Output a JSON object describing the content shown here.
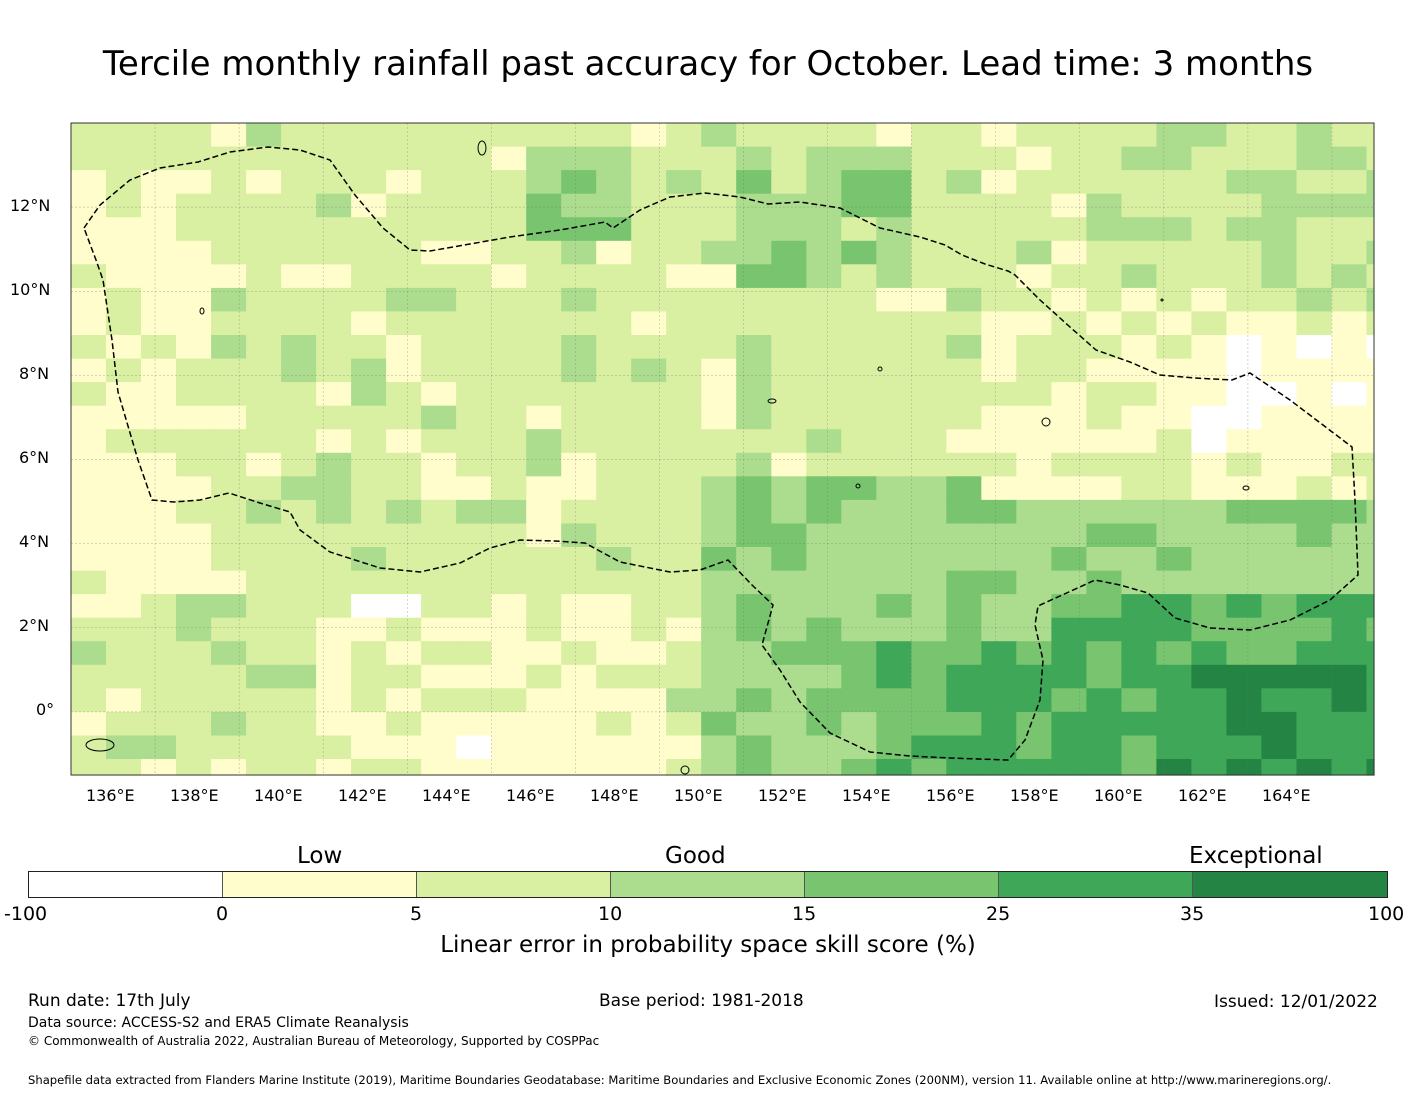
{
  "title": "Tercile monthly rainfall past accuracy for October. Lead time: 3 months",
  "map": {
    "lat_labels": [
      "12°N",
      "10°N",
      "8°N",
      "6°N",
      "4°N",
      "2°N",
      "0°"
    ],
    "lon_labels": [
      "136°E",
      "138°E",
      "140°E",
      "142°E",
      "144°E",
      "146°E",
      "148°E",
      "150°E",
      "152°E",
      "154°E",
      "156°E",
      "158°E",
      "160°E",
      "162°E",
      "164°E"
    ],
    "extent": {
      "lon_min": 134.0,
      "lon_max": 165.0,
      "lat_min": -1.5,
      "lat_max": 14.0
    },
    "boundary_style": "black dashed",
    "gridlines": true
  },
  "colorbar": {
    "categories": [
      "Low",
      "Good",
      "Exceptional"
    ],
    "ticks": [
      "-100",
      "0",
      "5",
      "10",
      "15",
      "25",
      "35",
      "100"
    ],
    "colors": [
      "#ffffff",
      "#fefdcb",
      "#d9efa2",
      "#acdc8d",
      "#78c46f",
      "#3ea858",
      "#238443"
    ],
    "caption": "Linear error in probability space skill score (%)"
  },
  "footer": {
    "run_date": "Run date: 17th July",
    "base_period": "Base period: 1981-2018",
    "issued": "Issued: 12/01/2022",
    "data_source": "Data source: ACCESS-S2 and ERA5 Climate Reanalysis",
    "copyright": "© Commonwealth of Australia 2022, Australian Bureau of Meteorology, Supported by COSPPac",
    "shapefile": "Shapefile data extracted from Flanders Marine Institute (2019), Maritime Boundaries Geodatabase: Maritime Boundaries and Exclusive Economic Zones (200NM), version 11. Available online at http://www.marineregions.org/."
  }
}
